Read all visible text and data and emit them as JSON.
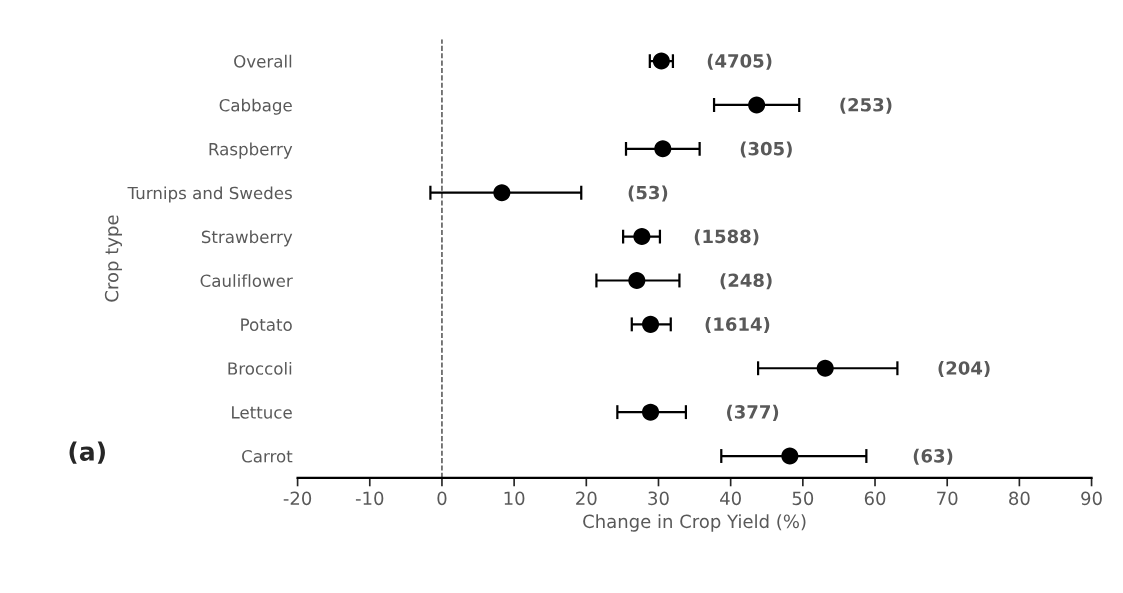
{
  "chart_data": {
    "type": "scatter",
    "xlabel": "Change in Crop Yield (%)",
    "ylabel": "Crop type",
    "categories": [
      "Overall",
      "Cabbage",
      "Raspberry",
      "Turnips and Swedes",
      "Strawberry",
      "Cauliflower",
      "Potato",
      "Broccoli",
      "Lettuce",
      "Carrot"
    ],
    "orientation": "horizontal",
    "series": [
      {
        "color": "#000000",
        "values": [
          30.4,
          43.6,
          30.6,
          8.3,
          27.7,
          27.0,
          28.9,
          53.1,
          28.9,
          48.2
        ],
        "errors": [
          [
            28.8,
            32.0
          ],
          [
            37.7,
            49.5
          ],
          [
            25.5,
            35.7
          ],
          [
            -1.6,
            19.3
          ],
          [
            25.1,
            30.2
          ],
          [
            21.4,
            32.9
          ],
          [
            26.3,
            31.7
          ],
          [
            43.8,
            63.1
          ],
          [
            24.3,
            33.8
          ],
          [
            38.7,
            58.8
          ]
        ]
      }
    ],
    "xlim": [
      -20,
      90
    ],
    "xticks": [
      -20,
      -10,
      0,
      10,
      20,
      30,
      40,
      50,
      60,
      70,
      80,
      90
    ],
    "marker": "circle",
    "grid": false,
    "legend": false,
    "ref_lines": [
      {
        "axis": "x",
        "value": 0,
        "line_style": "dashed",
        "color": "#404040"
      }
    ],
    "annotations": [
      "(4705)",
      "(253)",
      "(305)",
      "(53)",
      "(1588)",
      "(248)",
      "(1614)",
      "(204)",
      "(377)",
      "(63)",
      "(a)"
    ]
  }
}
